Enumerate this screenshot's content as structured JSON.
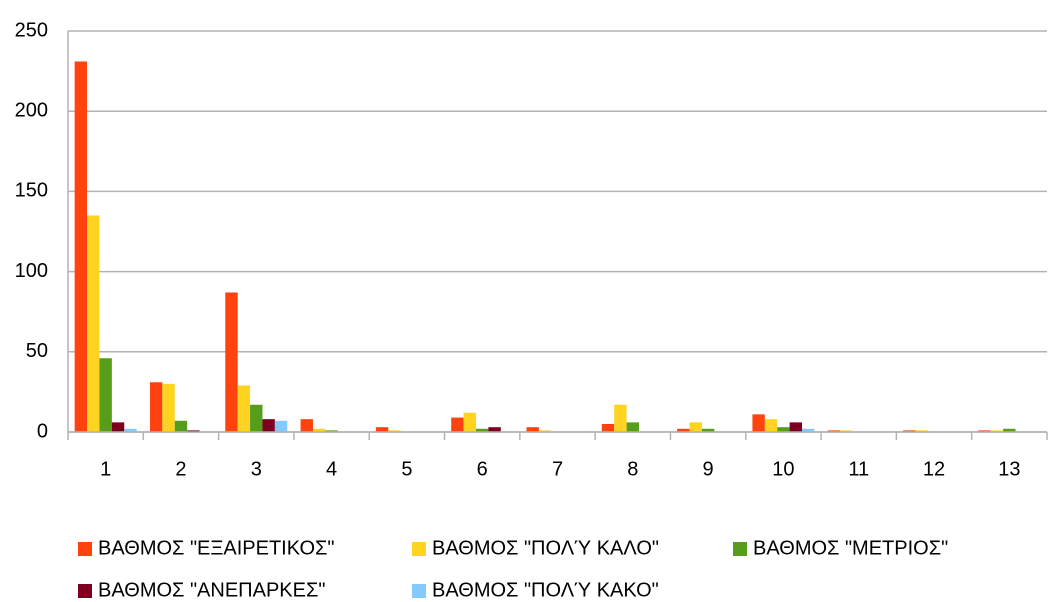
{
  "chart_data": {
    "type": "bar",
    "categories": [
      "1",
      "2",
      "3",
      "4",
      "5",
      "6",
      "7",
      "8",
      "9",
      "10",
      "11",
      "12",
      "13"
    ],
    "series": [
      {
        "name": "ΒΑΘΜΟΣ \"ΕΞΑΙΡΕΤΙΚΟΣ\"",
        "color": "#ff420e",
        "values": [
          231,
          31,
          87,
          8,
          3,
          9,
          3,
          5,
          2,
          11,
          1,
          1,
          1
        ]
      },
      {
        "name": "ΒΑΘΜΟΣ \"ΠΟΛΎ ΚΑΛΟ\"",
        "color": "#ffd320",
        "values": [
          135,
          30,
          29,
          2,
          1,
          12,
          1,
          17,
          6,
          8,
          1,
          1,
          1
        ]
      },
      {
        "name": "ΒΑΘΜΟΣ \"ΜΕΤΡΙΟΣ\"",
        "color": "#579d1c",
        "values": [
          46,
          7,
          17,
          1,
          0,
          2,
          0,
          6,
          2,
          3,
          0,
          0,
          2
        ]
      },
      {
        "name": "ΒΑΘΜΟΣ \"ΑΝΕΠΑΡΚΕΣ\"",
        "color": "#7e0021",
        "values": [
          6,
          1,
          8,
          0,
          0,
          3,
          0,
          0,
          0,
          6,
          0,
          0,
          0
        ]
      },
      {
        "name": "ΒΑΘΜΟΣ \"ΠΟΛΎ ΚΑΚΟ\"",
        "color": "#83caff",
        "values": [
          2,
          0,
          7,
          0,
          0,
          0,
          0,
          0,
          0,
          2,
          0,
          0,
          0
        ]
      }
    ],
    "ylim": [
      0,
      250
    ],
    "yticks": [
      0,
      50,
      100,
      150,
      200,
      250
    ],
    "grid": true,
    "legend": "bottom"
  }
}
